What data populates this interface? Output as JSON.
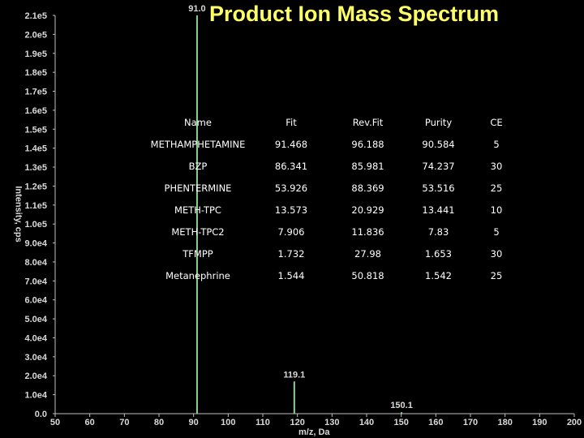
{
  "chart_data": {
    "type": "bar",
    "title": "Product Ion Mass Spectrum",
    "xlabel": "m/z, Da",
    "ylabel": "Intensity, cps",
    "xlim": [
      50,
      200
    ],
    "ylim": [
      0,
      210000
    ],
    "x_ticks": [
      "50",
      "60",
      "70",
      "80",
      "90",
      "100",
      "110",
      "120",
      "130",
      "140",
      "150",
      "160",
      "170",
      "180",
      "190",
      "200"
    ],
    "y_ticks": [
      {
        "label": "0.0",
        "value": 0
      },
      {
        "label": "1.0e4",
        "value": 10000
      },
      {
        "label": "2.0e4",
        "value": 20000
      },
      {
        "label": "3.0e4",
        "value": 30000
      },
      {
        "label": "4.0e4",
        "value": 40000
      },
      {
        "label": "5.0e4",
        "value": 50000
      },
      {
        "label": "6.0e4",
        "value": 60000
      },
      {
        "label": "7.0e4",
        "value": 70000
      },
      {
        "label": "8.0e4",
        "value": 80000
      },
      {
        "label": "9.0e4",
        "value": 90000
      },
      {
        "label": "1.0e5",
        "value": 100000
      },
      {
        "label": "1.1e5",
        "value": 110000
      },
      {
        "label": "1.2e5",
        "value": 120000
      },
      {
        "label": "1.3e5",
        "value": 130000
      },
      {
        "label": "1.4e5",
        "value": 140000
      },
      {
        "label": "1.5e5",
        "value": 150000
      },
      {
        "label": "1.6e5",
        "value": 160000
      },
      {
        "label": "1.7e5",
        "value": 170000
      },
      {
        "label": "1.8e5",
        "value": 180000
      },
      {
        "label": "1.9e5",
        "value": 190000
      },
      {
        "label": "2.0e5",
        "value": 200000
      },
      {
        "label": "2.1e5",
        "value": 210000
      }
    ],
    "peaks": [
      {
        "mz": 91.0,
        "intensity": 210000,
        "label": "91.0"
      },
      {
        "mz": 119.1,
        "intensity": 17000,
        "label": "119.1"
      },
      {
        "mz": 150.1,
        "intensity": 800,
        "label": "150.1"
      }
    ],
    "colors": {
      "background": "#000000",
      "axis": "#c0c0c0",
      "tick_text": "#d9d9d9",
      "peak": "#90d090",
      "title": "#ffff66"
    }
  },
  "results_table": {
    "headers": [
      "Name",
      "Fit",
      "Rev.Fit",
      "Purity",
      "CE"
    ],
    "rows": [
      [
        "METHAMPHETAMINE",
        "91.468",
        "96.188",
        "90.584",
        "5"
      ],
      [
        "BZP",
        "86.341",
        "85.981",
        "74.237",
        "30"
      ],
      [
        "PHENTERMINE",
        "53.926",
        "88.369",
        "53.516",
        "25"
      ],
      [
        "METH-TPC",
        "13.573",
        "20.929",
        "13.441",
        "10"
      ],
      [
        "METH-TPC2",
        "7.906",
        "11.836",
        "7.83",
        "5"
      ],
      [
        "TFMPP",
        "1.732",
        "27.98",
        "1.653",
        "30"
      ],
      [
        "Metanephrine",
        "1.544",
        "50.818",
        "1.542",
        "25"
      ]
    ]
  }
}
